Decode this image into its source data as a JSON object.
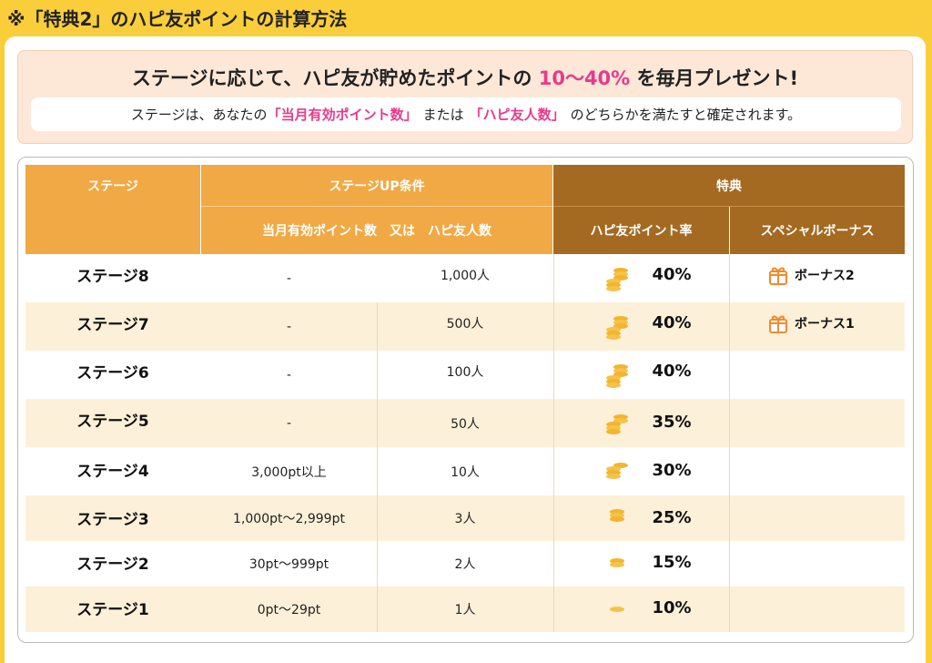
{
  "page": {
    "title": "※「特典2」のハピ友ポイントの計算方法"
  },
  "intro": {
    "head_prefix": "ステージに応じて、ハピ友が貯めたポイントの",
    "head_highlight": "10〜40%",
    "head_suffix": "を毎月プレゼント!",
    "note_1": "ステージは、あなたの",
    "note_hl1": "「当月有効ポイント数」",
    "note_2": "または",
    "note_hl2": "「ハピ友人数」",
    "note_3": "のどちらかを満たすと確定されます。"
  },
  "table": {
    "headers": {
      "stage": "ステージ",
      "condition": "ステージUP条件",
      "condition_sub": "当月有効ポイント数　又は　ハピ友人数",
      "benefit": "特典",
      "rate": "ハピ友ポイント率",
      "bonus": "スペシャルボーナス"
    },
    "rows": [
      {
        "stage": "ステージ8",
        "points": "-",
        "friends": "1,000人",
        "rate": "40%",
        "bonus": "ボーナス2"
      },
      {
        "stage": "ステージ7",
        "points": "-",
        "friends": "500人",
        "rate": "40%",
        "bonus": "ボーナス1"
      },
      {
        "stage": "ステージ6",
        "points": "-",
        "friends": "100人",
        "rate": "40%",
        "bonus": ""
      },
      {
        "stage": "ステージ5",
        "points": "-",
        "friends": "50人",
        "rate": "35%",
        "bonus": ""
      },
      {
        "stage": "ステージ4",
        "points": "3,000pt以上",
        "friends": "10人",
        "rate": "30%",
        "bonus": ""
      },
      {
        "stage": "ステージ3",
        "points": "1,000pt〜2,999pt",
        "friends": "3人",
        "rate": "25%",
        "bonus": ""
      },
      {
        "stage": "ステージ2",
        "points": "30pt〜999pt",
        "friends": "2人",
        "rate": "15%",
        "bonus": ""
      },
      {
        "stage": "ステージ1",
        "points": "0pt〜29pt",
        "friends": "1人",
        "rate": "10%",
        "bonus": ""
      }
    ]
  },
  "colors": {
    "background": "#f9ce3a",
    "header_orange": "#f0a944",
    "header_brown": "#a46a22",
    "row_alt": "#fdf0d8",
    "highlight_pink": "#e83a8b",
    "coin_gold": "#f2b52e"
  },
  "icons": {
    "coin": "coin-stack-icon",
    "gift": "gift-icon"
  }
}
